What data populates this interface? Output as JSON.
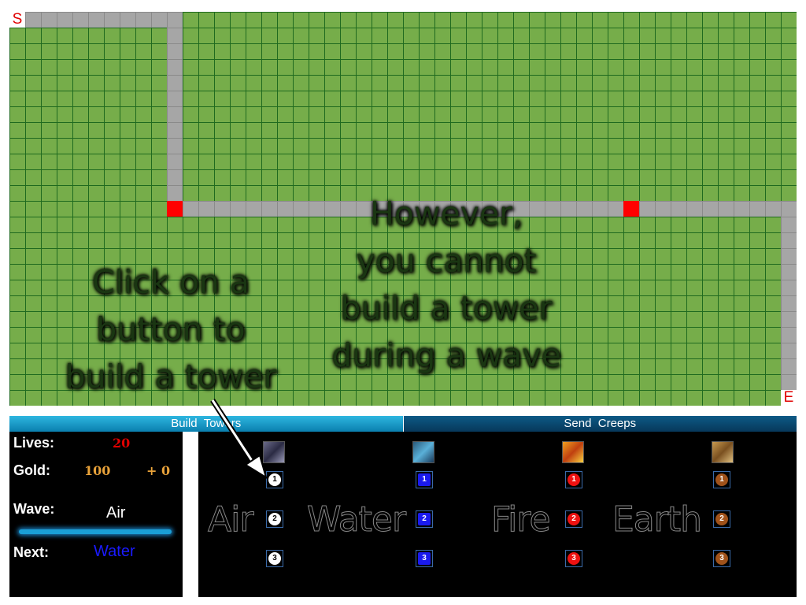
{
  "map": {
    "start_label": "S",
    "end_label": "E"
  },
  "tutorial": {
    "build_hint": [
      "Click on a",
      "button to",
      "build a tower"
    ],
    "wave_hint": [
      "However,",
      "you cannot",
      "build a tower",
      "during a wave"
    ]
  },
  "tabs": {
    "build_label": "Build  Towers",
    "send_label": "Send  Creeps"
  },
  "stats": {
    "lives_label": "Lives:",
    "lives_value": "20",
    "gold_label": "Gold:",
    "gold_value": "100",
    "gold_income": "+ 0",
    "wave_label": "Wave:",
    "wave_value": "Air",
    "next_label": "Next:",
    "next_value": "Water",
    "colors": {
      "lives": "#e00000",
      "gold": "#e8a23a",
      "next": "#1a1aff"
    }
  },
  "elements": [
    {
      "name": "Air",
      "icon": "air-icon",
      "color": "#ffffff",
      "text_color": "#000000",
      "tiers": [
        "1",
        "2",
        "3"
      ]
    },
    {
      "name": "Water",
      "icon": "water-icon",
      "color": "#1a1aee",
      "text_color": "#ffffff",
      "tiers": [
        "1",
        "2",
        "3"
      ]
    },
    {
      "name": "Fire",
      "icon": "fire-icon",
      "color": "#ee1111",
      "text_color": "#ffffff",
      "tiers": [
        "1",
        "2",
        "3"
      ]
    },
    {
      "name": "Earth",
      "icon": "earth-icon",
      "color": "#a0521a",
      "text_color": "#ffffff",
      "tiers": [
        "1",
        "2",
        "3"
      ]
    }
  ]
}
